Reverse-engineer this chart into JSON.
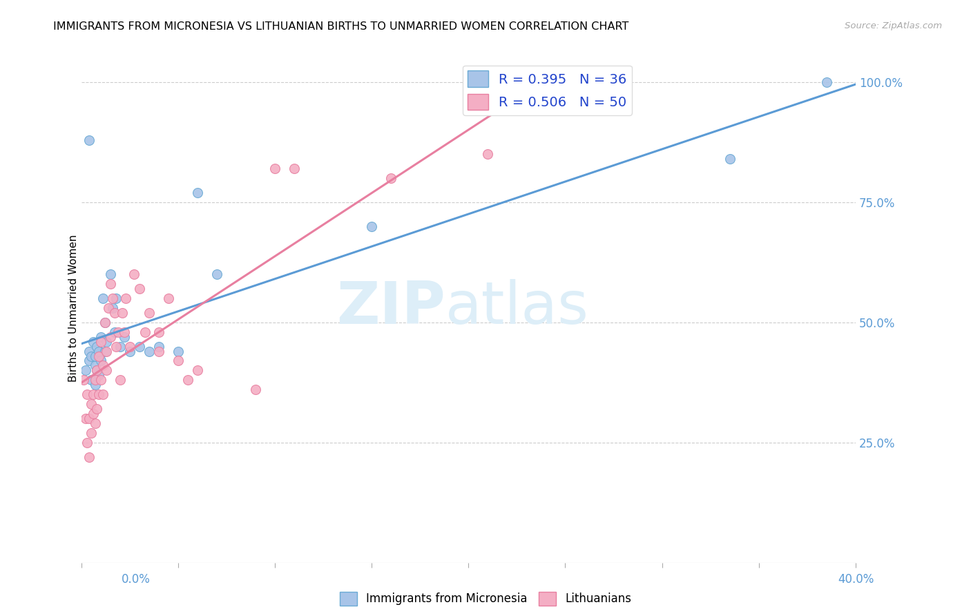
{
  "title": "IMMIGRANTS FROM MICRONESIA VS LITHUANIAN BIRTHS TO UNMARRIED WOMEN CORRELATION CHART",
  "source": "Source: ZipAtlas.com",
  "ylabel": "Births to Unmarried Women",
  "ytick_labels": [
    "25.0%",
    "50.0%",
    "75.0%",
    "100.0%"
  ],
  "ytick_values": [
    0.25,
    0.5,
    0.75,
    1.0
  ],
  "legend_label1": "Immigrants from Micronesia",
  "legend_label2": "Lithuanians",
  "R1": 0.395,
  "N1": 36,
  "R2": 0.506,
  "N2": 50,
  "color_blue_fill": "#a8c4e8",
  "color_blue_edge": "#6aaad4",
  "color_pink_fill": "#f4aec4",
  "color_pink_edge": "#e87fa0",
  "color_blue_line": "#5b9bd5",
  "color_pink_line": "#e87fa0",
  "watermark_zip": "ZIP",
  "watermark_atlas": "atlas",
  "watermark_color": "#ddeeff",
  "xmin": 0.0,
  "xmax": 0.4,
  "ymin": 0.0,
  "ymax": 1.06,
  "blue_x": [
    0.002,
    0.004,
    0.004,
    0.005,
    0.005,
    0.006,
    0.007,
    0.007,
    0.007,
    0.008,
    0.008,
    0.009,
    0.009,
    0.01,
    0.01,
    0.011,
    0.012,
    0.012,
    0.013,
    0.015,
    0.016,
    0.017,
    0.018,
    0.02,
    0.022,
    0.025,
    0.03,
    0.035,
    0.04,
    0.05,
    0.06,
    0.07,
    0.15,
    0.335,
    0.385,
    0.004
  ],
  "blue_y": [
    0.4,
    0.42,
    0.44,
    0.38,
    0.43,
    0.46,
    0.37,
    0.41,
    0.43,
    0.4,
    0.45,
    0.39,
    0.44,
    0.42,
    0.47,
    0.55,
    0.5,
    0.44,
    0.46,
    0.6,
    0.53,
    0.48,
    0.55,
    0.45,
    0.47,
    0.44,
    0.45,
    0.44,
    0.45,
    0.44,
    0.77,
    0.6,
    0.7,
    0.84,
    1.0,
    0.88
  ],
  "pink_x": [
    0.001,
    0.002,
    0.003,
    0.003,
    0.004,
    0.004,
    0.005,
    0.005,
    0.006,
    0.006,
    0.007,
    0.007,
    0.008,
    0.008,
    0.009,
    0.009,
    0.01,
    0.01,
    0.011,
    0.011,
    0.012,
    0.013,
    0.013,
    0.014,
    0.015,
    0.015,
    0.016,
    0.017,
    0.018,
    0.019,
    0.02,
    0.021,
    0.022,
    0.023,
    0.025,
    0.027,
    0.03,
    0.033,
    0.035,
    0.04,
    0.04,
    0.045,
    0.05,
    0.055,
    0.06,
    0.09,
    0.1,
    0.11,
    0.16,
    0.21
  ],
  "pink_y": [
    0.38,
    0.3,
    0.25,
    0.35,
    0.22,
    0.3,
    0.27,
    0.33,
    0.31,
    0.35,
    0.29,
    0.38,
    0.32,
    0.4,
    0.35,
    0.43,
    0.38,
    0.46,
    0.41,
    0.35,
    0.5,
    0.44,
    0.4,
    0.53,
    0.58,
    0.47,
    0.55,
    0.52,
    0.45,
    0.48,
    0.38,
    0.52,
    0.48,
    0.55,
    0.45,
    0.6,
    0.57,
    0.48,
    0.52,
    0.44,
    0.48,
    0.55,
    0.42,
    0.38,
    0.4,
    0.36,
    0.82,
    0.82,
    0.8,
    0.85
  ]
}
